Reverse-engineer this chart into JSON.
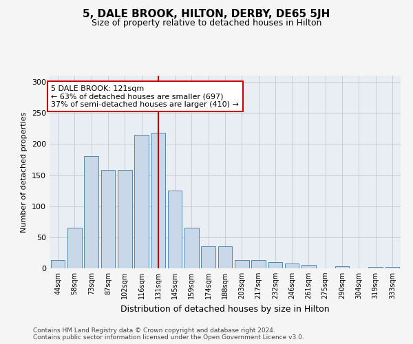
{
  "title": "5, DALE BROOK, HILTON, DERBY, DE65 5JH",
  "subtitle": "Size of property relative to detached houses in Hilton",
  "xlabel": "Distribution of detached houses by size in Hilton",
  "ylabel": "Number of detached properties",
  "categories": [
    "44sqm",
    "58sqm",
    "73sqm",
    "87sqm",
    "102sqm",
    "116sqm",
    "131sqm",
    "145sqm",
    "159sqm",
    "174sqm",
    "188sqm",
    "203sqm",
    "217sqm",
    "232sqm",
    "246sqm",
    "261sqm",
    "275sqm",
    "290sqm",
    "304sqm",
    "319sqm",
    "333sqm"
  ],
  "bar_heights": [
    13,
    65,
    180,
    158,
    158,
    215,
    218,
    125,
    65,
    35,
    35,
    13,
    13,
    10,
    8,
    5,
    0,
    3,
    0,
    2,
    2
  ],
  "bar_color": "#c8d8e8",
  "bar_edge_color": "#5588aa",
  "highlight_index": 6,
  "highlight_color": "#cc0000",
  "annotation_text": "5 DALE BROOK: 121sqm\n← 63% of detached houses are smaller (697)\n37% of semi-detached houses are larger (410) →",
  "annotation_box_color": "#ffffff",
  "annotation_box_edge": "#cc0000",
  "ylim": [
    0,
    310
  ],
  "yticks": [
    0,
    50,
    100,
    150,
    200,
    250,
    300
  ],
  "grid_color": "#cccccc",
  "background_color": "#e8eef4",
  "fig_background": "#f5f5f5",
  "footer_line1": "Contains HM Land Registry data © Crown copyright and database right 2024.",
  "footer_line2": "Contains public sector information licensed under the Open Government Licence v3.0."
}
